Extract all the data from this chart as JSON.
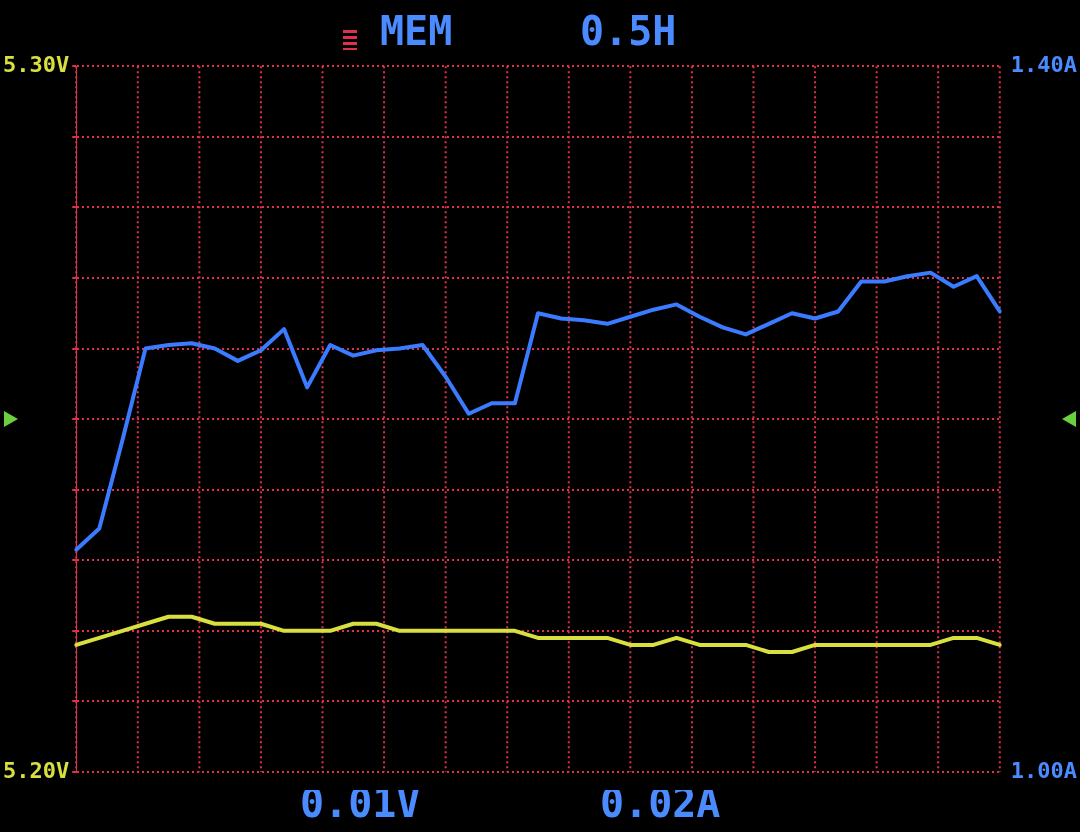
{
  "chart_data": {
    "type": "line",
    "categories": [
      null,
      null,
      null,
      null,
      null,
      null,
      null,
      null,
      null,
      null,
      null,
      null,
      null,
      null,
      null,
      null,
      null,
      null,
      null,
      null,
      null,
      null,
      null,
      null,
      null,
      null,
      null,
      null,
      null,
      null,
      null,
      null,
      null,
      null,
      null,
      null,
      null,
      null,
      null,
      null,
      null
    ],
    "series": [
      {
        "color": "#d8e040",
        "values": [
          5.218,
          5.219,
          5.22,
          5.221,
          5.222,
          5.222,
          5.221,
          5.221,
          5.221,
          5.22,
          5.22,
          5.22,
          5.221,
          5.221,
          5.22,
          5.22,
          5.22,
          5.22,
          5.22,
          5.22,
          5.219,
          5.219,
          5.219,
          5.219,
          5.218,
          5.218,
          5.219,
          5.218,
          5.218,
          5.218,
          5.217,
          5.217,
          5.218,
          5.218,
          5.218,
          5.218,
          5.218,
          5.218,
          5.219,
          5.219,
          5.218
        ]
      },
      {
        "color": "#3a7bff",
        "axis": "y2",
        "values": [
          1.126,
          1.138,
          1.188,
          1.24,
          1.242,
          1.243,
          1.24,
          1.233,
          1.239,
          1.251,
          1.218,
          1.242,
          1.236,
          1.239,
          1.24,
          1.242,
          1.224,
          1.203,
          1.209,
          1.209,
          1.26,
          1.257,
          1.256,
          1.254,
          1.258,
          1.262,
          1.265,
          1.258,
          1.252,
          1.248,
          1.254,
          1.26,
          1.257,
          1.261,
          1.278,
          1.278,
          1.281,
          1.283,
          1.275,
          1.281,
          1.261
        ]
      }
    ],
    "ylim": [
      5.2,
      5.3
    ],
    "yticks": [
      {
        "value": 5.2,
        "label": "5.20V"
      },
      {
        "value": 5.21,
        "label": null
      },
      {
        "value": 5.22,
        "label": null
      },
      {
        "value": 5.23,
        "label": null
      },
      {
        "value": 5.24,
        "label": null
      },
      {
        "value": 5.25,
        "label": null
      },
      {
        "value": 5.26,
        "label": null
      },
      {
        "value": 5.27,
        "label": null
      },
      {
        "value": 5.28,
        "label": null
      },
      {
        "value": 5.29,
        "label": null
      },
      {
        "value": 5.3,
        "label": "5.30V"
      }
    ],
    "y2lim": [
      1.0,
      1.4
    ],
    "y2ticks": [
      {
        "value": 1.0,
        "label": "1.00A"
      },
      {
        "value": 1.4,
        "label": "1.40A"
      }
    ],
    "annotations": [
      "MEM",
      "0.5H",
      "0.01V",
      "0.02A"
    ],
    "grid": true,
    "legend": false,
    "marker": "none",
    "line_style": "solid",
    "tick_labels": "y"
  }
}
